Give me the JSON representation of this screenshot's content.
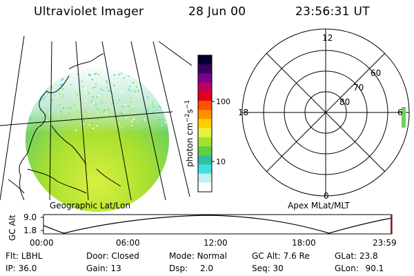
{
  "header": {
    "instrument": "Ultraviolet Imager",
    "date": "28 Jun 00",
    "time": "23:56:31 UT"
  },
  "colorbar": {
    "unit_label": "photon cm",
    "unit_exp1": "−2",
    "unit_s": "s",
    "unit_exp2": "−1",
    "tick_100": "100",
    "tick_10": "10",
    "colors": [
      "#000030",
      "#3a0060",
      "#7a0090",
      "#c00060",
      "#e00020",
      "#ff5000",
      "#ff9000",
      "#ffd000",
      "#e8f040",
      "#a8e030",
      "#60d040",
      "#30c0a0",
      "#40e0e0",
      "#c0f0f0",
      "#ffffff"
    ]
  },
  "left_map": {
    "caption": "Geographic Lat/Lon"
  },
  "polar_plot": {
    "caption": "Apex MLat/MLT",
    "label_12": "12",
    "label_18": "18",
    "label_6": "6",
    "label_0": "0",
    "label_60": "60",
    "label_70": "70",
    "label_80": "80"
  },
  "altitude_plot": {
    "ylabel": "GC Alt",
    "ytick_top": "9.0",
    "ytick_bottom": "1.8",
    "xticks": [
      "00:00",
      "06:00",
      "12:00",
      "18:00",
      "23:59"
    ]
  },
  "info": {
    "flt_label": "Flt:",
    "flt_value": "LBHL",
    "door_label": "Door:",
    "door_value": "Closed",
    "mode_label": "Mode:",
    "mode_value": "Normal",
    "gcalt_label": "GC Alt:",
    "gcalt_value": "7.6 Re",
    "glat_label": "GLat:",
    "glat_value": "23.8",
    "ip_label": "IP:",
    "ip_value": "36.0",
    "gain_label": "Gain:",
    "gain_value": "13",
    "dsp_label": "Dsp:",
    "dsp_value": "2.0",
    "seq_label": "Seq:",
    "seq_value": "30",
    "glon_label": "GLon:",
    "glon_value": "90.1"
  }
}
